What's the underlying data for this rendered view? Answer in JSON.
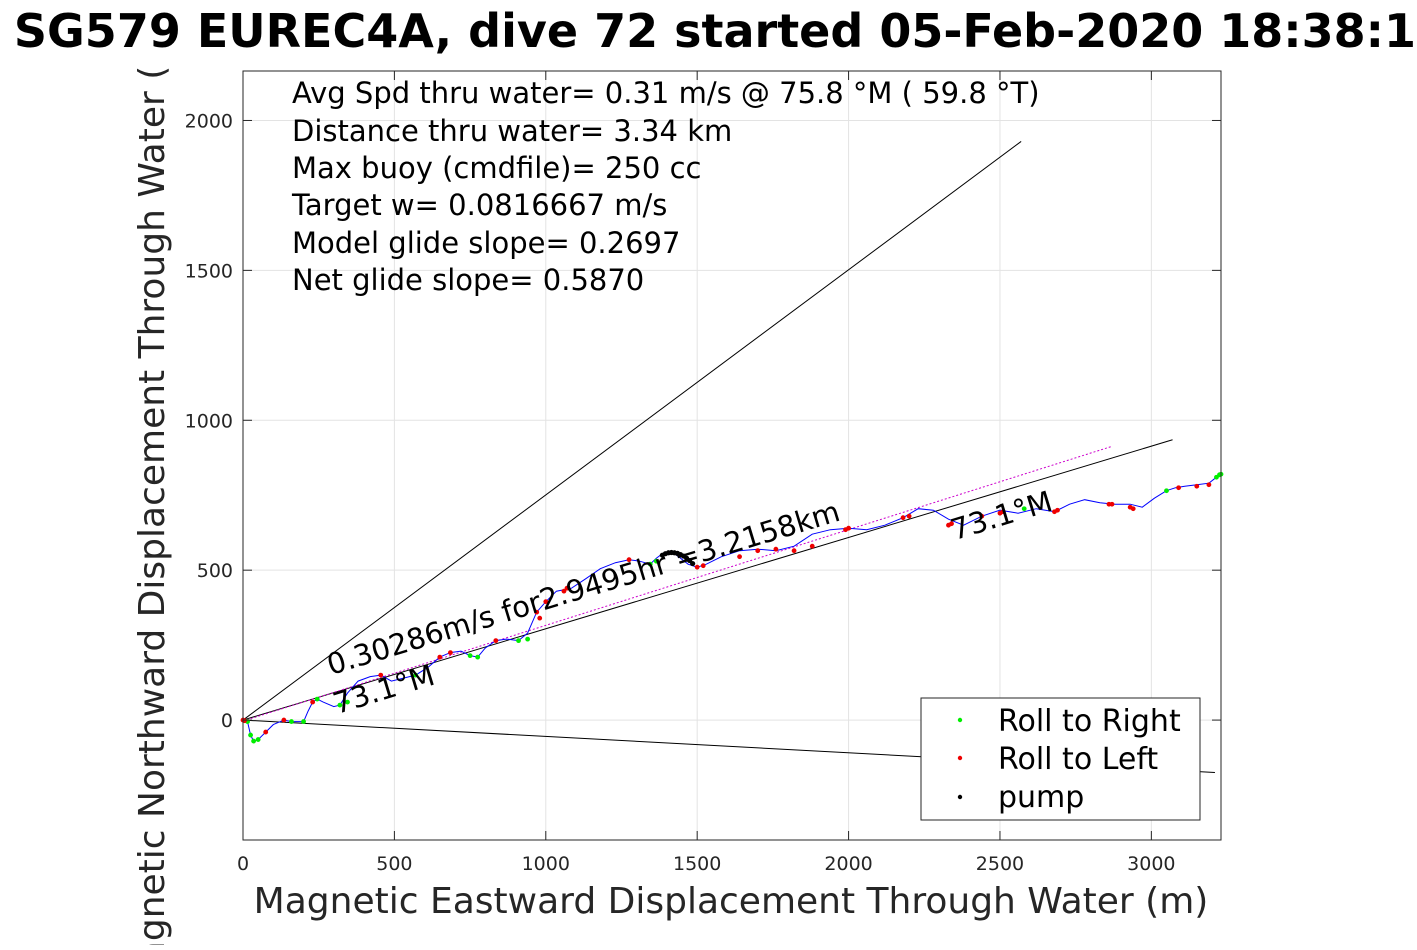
{
  "chart_data": {
    "type": "scatter",
    "title": "SG579 EUREC4A, dive 72 started 05-Feb-2020 18:38:1",
    "xlabel": "Magnetic Eastward Displacement Through Water (m)",
    "ylabel": "Magnetic Northward Displacement Through Water (",
    "xlim": [
      0,
      3230
    ],
    "ylim": [
      -400,
      2165
    ],
    "xticks": [
      0,
      500,
      1000,
      1500,
      2000,
      2500,
      3000
    ],
    "yticks": [
      0,
      500,
      1000,
      1500,
      2000
    ],
    "grid": true,
    "legend_position": "bottom-right",
    "stats": [
      "Avg Spd thru water=  0.31 m/s @  75.8 °M ( 59.8 °T)",
      "Distance thru water=  3.34 km",
      "Max buoy (cmdfile)= 250 cc",
      "Target w= 0.0816667 m/s",
      "Model glide slope= 0.2697",
      "Net glide slope= 0.5870"
    ],
    "annotations": [
      {
        "text": "0.30286m/s for2.9495hr =3.2158km",
        "x": 290,
        "y": 150,
        "angle_deg": 16.9
      },
      {
        "text": "73.1°M",
        "x": 310,
        "y": 20,
        "angle_deg": 16.9
      },
      {
        "text": "73.1°M",
        "x": 2350,
        "y": 600,
        "angle_deg": 16.9
      }
    ],
    "reference_lines": [
      {
        "name": "upper-bound-line",
        "x": [
          0,
          2570
        ],
        "y": [
          0,
          1930
        ]
      },
      {
        "name": "heading-line",
        "x": [
          0,
          3070
        ],
        "y": [
          0,
          935
        ]
      },
      {
        "name": "lower-bound-line",
        "x": [
          0,
          3210
        ],
        "y": [
          0,
          -175
        ]
      }
    ],
    "track": {
      "x": [
        0,
        15,
        25,
        35,
        50,
        75,
        100,
        135,
        160,
        200,
        215,
        230,
        245,
        265,
        300,
        320,
        345,
        380,
        420,
        455,
        490,
        530,
        570,
        610,
        650,
        685,
        720,
        750,
        775,
        800,
        835,
        870,
        910,
        940,
        970,
        1000,
        1035,
        1060,
        1085,
        1130,
        1180,
        1230,
        1275,
        1310,
        1345,
        1365,
        1385,
        1405,
        1425,
        1445,
        1470,
        1500,
        1530,
        1580,
        1640,
        1700,
        1760,
        1820,
        1880,
        1940,
        2000,
        2060,
        2120,
        2180,
        2230,
        2280,
        2330,
        2380,
        2440,
        2500,
        2560,
        2620,
        2680,
        2730,
        2780,
        2830,
        2880,
        2930,
        2970,
        3010,
        3050,
        3080,
        3110,
        3150,
        3190,
        3215,
        3230
      ],
      "y": [
        0,
        -5,
        -50,
        -70,
        -65,
        -40,
        -15,
        0,
        -5,
        -5,
        30,
        60,
        70,
        60,
        45,
        50,
        90,
        130,
        145,
        150,
        130,
        140,
        150,
        175,
        210,
        225,
        230,
        215,
        210,
        240,
        265,
        270,
        265,
        290,
        360,
        395,
        430,
        435,
        440,
        470,
        505,
        525,
        535,
        530,
        520,
        540,
        555,
        558,
        555,
        540,
        520,
        510,
        520,
        545,
        565,
        570,
        565,
        580,
        620,
        635,
        640,
        635,
        650,
        675,
        705,
        700,
        670,
        650,
        680,
        700,
        690,
        705,
        695,
        720,
        735,
        725,
        720,
        720,
        710,
        740,
        765,
        775,
        780,
        785,
        790,
        810,
        820
      ]
    },
    "series": [
      {
        "name": "Roll to Right",
        "color": "#00ee00",
        "x": [
          15,
          25,
          35,
          50,
          160,
          200,
          245,
          320,
          345,
          570,
          750,
          775,
          910,
          940,
          1345,
          1365,
          2580,
          3050,
          3215,
          3225,
          3230
        ],
        "y": [
          -5,
          -50,
          -70,
          -65,
          -5,
          -5,
          70,
          50,
          60,
          150,
          215,
          210,
          265,
          270,
          520,
          530,
          705,
          765,
          810,
          818,
          820
        ]
      },
      {
        "name": "Roll to Left",
        "color": "#ee0000",
        "x": [
          0,
          5,
          75,
          135,
          230,
          455,
          650,
          685,
          835,
          970,
          980,
          1000,
          1060,
          1070,
          1275,
          1500,
          1520,
          1640,
          1700,
          1760,
          1820,
          1880,
          1990,
          2000,
          2180,
          2200,
          2330,
          2340,
          2440,
          2500,
          2510,
          2680,
          2690,
          2860,
          2870,
          2930,
          2940,
          3090,
          3150,
          3190
        ],
        "y": [
          0,
          -2,
          -40,
          0,
          60,
          150,
          210,
          225,
          265,
          360,
          340,
          395,
          430,
          440,
          535,
          510,
          515,
          545,
          565,
          570,
          565,
          580,
          635,
          640,
          675,
          680,
          650,
          655,
          680,
          690,
          695,
          695,
          700,
          720,
          720,
          710,
          705,
          775,
          780,
          785
        ]
      },
      {
        "name": "pump",
        "color": "#000000",
        "x": [
          1385,
          1395,
          1405,
          1415,
          1425,
          1435,
          1445,
          1455,
          1465,
          1475,
          1485
        ],
        "y": [
          550,
          555,
          558,
          559,
          558,
          556,
          552,
          547,
          540,
          532,
          522
        ]
      }
    ]
  }
}
